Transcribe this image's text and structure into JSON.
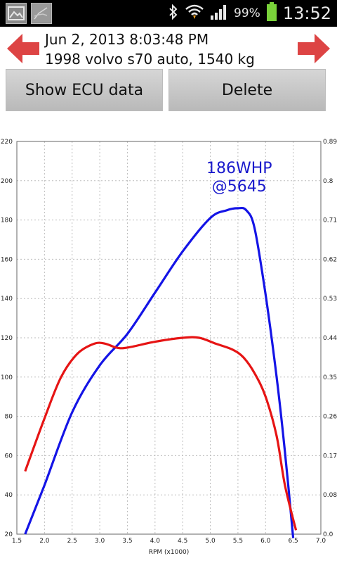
{
  "status_bar": {
    "icons": [
      "gallery-icon",
      "graph-thumbnail-icon",
      "bluetooth-icon",
      "wifi-icon",
      "signal-icon",
      "battery-icon"
    ],
    "battery_percent": "99%",
    "time": "13:52"
  },
  "header": {
    "date_line": "Jun 2, 2013 8:03:48 PM",
    "car_line": "1998 volvo s70 auto, 1540 kg",
    "arrow_color": "#dd4444"
  },
  "buttons": {
    "show_ecu": "Show ECU data",
    "delete": "Delete"
  },
  "chart_data": {
    "type": "line",
    "title": "",
    "xlabel": "RPM (x1000)",
    "xlim": [
      1.5,
      7.0
    ],
    "x_ticks": [
      "1.5",
      "2.0",
      "2.5",
      "3.0",
      "3.5",
      "4.0",
      "4.5",
      "5.0",
      "5.5",
      "6.0",
      "6.5",
      "7.0"
    ],
    "ylim_left": [
      20,
      220
    ],
    "y_ticks_left": [
      "20",
      "40",
      "60",
      "80",
      "100",
      "120",
      "140",
      "160",
      "180",
      "200",
      "220"
    ],
    "ylim_right": [
      0.0,
      0.89
    ],
    "y_ticks_right": [
      "0.0",
      "0.08",
      "0.17",
      "0.26",
      "0.35",
      "0.44",
      "0.53",
      "0.62",
      "0.71",
      "0.8",
      "0.89"
    ],
    "grid": true,
    "annotation": [
      "186WHP",
      "@5645"
    ],
    "series": [
      {
        "color": "#1414e6",
        "axis": "left",
        "points": [
          [
            1.65,
            20
          ],
          [
            2.0,
            45
          ],
          [
            2.5,
            82
          ],
          [
            3.0,
            106
          ],
          [
            3.5,
            122
          ],
          [
            4.0,
            143
          ],
          [
            4.5,
            164
          ],
          [
            5.0,
            181
          ],
          [
            5.3,
            185
          ],
          [
            5.5,
            186
          ],
          [
            5.65,
            185
          ],
          [
            5.8,
            176
          ],
          [
            6.0,
            142
          ],
          [
            6.2,
            100
          ],
          [
            6.35,
            62
          ],
          [
            6.5,
            18
          ]
        ]
      },
      {
        "color": "#e61414",
        "axis": "left",
        "points": [
          [
            1.65,
            52
          ],
          [
            2.0,
            79
          ],
          [
            2.3,
            100
          ],
          [
            2.6,
            112
          ],
          [
            2.9,
            117
          ],
          [
            3.1,
            117
          ],
          [
            3.3,
            115
          ],
          [
            3.5,
            115
          ],
          [
            4.0,
            118
          ],
          [
            4.5,
            120
          ],
          [
            4.8,
            120
          ],
          [
            5.1,
            117
          ],
          [
            5.4,
            114
          ],
          [
            5.6,
            110
          ],
          [
            5.8,
            102
          ],
          [
            6.0,
            90
          ],
          [
            6.2,
            70
          ],
          [
            6.35,
            45
          ],
          [
            6.55,
            22
          ]
        ]
      }
    ]
  }
}
